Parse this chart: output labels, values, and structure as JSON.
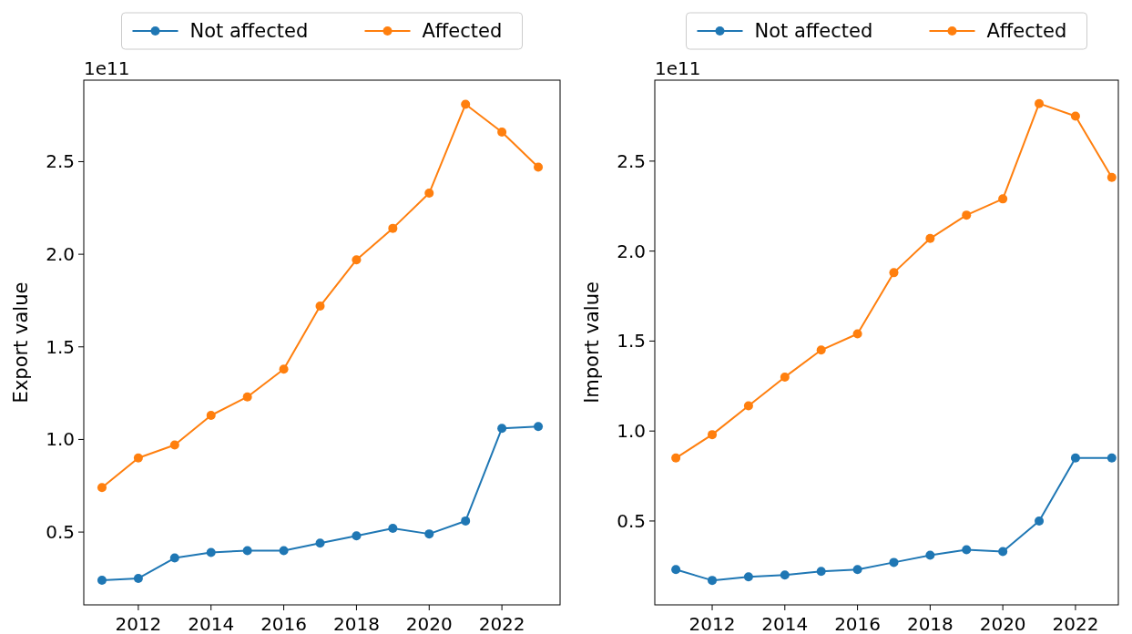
{
  "chart_data": [
    {
      "type": "line",
      "ylabel": "Export value",
      "annotations": [
        "1e11"
      ],
      "x": [
        2011,
        2012,
        2013,
        2014,
        2015,
        2016,
        2017,
        2018,
        2019,
        2020,
        2021,
        2022,
        2023
      ],
      "series": [
        {
          "name": "Not affected",
          "color": "#1f77b4",
          "values": [
            0.24,
            0.25,
            0.36,
            0.39,
            0.4,
            0.4,
            0.44,
            0.48,
            0.52,
            0.49,
            0.56,
            1.06,
            1.07
          ]
        },
        {
          "name": "Affected",
          "color": "#ff7f0e",
          "values": [
            0.74,
            0.9,
            0.97,
            1.13,
            1.23,
            1.38,
            1.72,
            1.97,
            2.14,
            2.33,
            2.81,
            2.66,
            2.47
          ]
        }
      ],
      "xlim": [
        2010.5,
        2023.6
      ],
      "xticks": [
        2012,
        2014,
        2016,
        2018,
        2020,
        2022
      ],
      "ylim": [
        0.107,
        2.94
      ],
      "yticks": [
        {
          "value": 0.5,
          "label": "0.5"
        },
        {
          "value": 1,
          "label": "1.0"
        },
        {
          "value": 1.5,
          "label": "1.5"
        },
        {
          "value": 2,
          "label": "2.0"
        },
        {
          "value": 2.5,
          "label": "2.5"
        }
      ],
      "grid": false,
      "legend": "top",
      "marker": "circle",
      "line_style": "solid"
    },
    {
      "type": "line",
      "ylabel": "Import value",
      "annotations": [
        "1e11"
      ],
      "x": [
        2011,
        2012,
        2013,
        2014,
        2015,
        2016,
        2017,
        2018,
        2019,
        2020,
        2021,
        2022,
        2023
      ],
      "series": [
        {
          "name": "Not affected",
          "color": "#1f77b4",
          "values": [
            0.23,
            0.17,
            0.19,
            0.2,
            0.22,
            0.23,
            0.27,
            0.31,
            0.34,
            0.33,
            0.5,
            0.85,
            0.85
          ]
        },
        {
          "name": "Affected",
          "color": "#ff7f0e",
          "values": [
            0.85,
            0.98,
            1.14,
            1.3,
            1.45,
            1.54,
            1.88,
            2.07,
            2.2,
            2.29,
            2.82,
            2.75,
            2.41
          ]
        }
      ],
      "xlim": [
        2010.42,
        2023.18
      ],
      "xticks": [
        2012,
        2014,
        2016,
        2018,
        2020,
        2022
      ],
      "ylim": [
        0.034,
        2.95
      ],
      "yticks": [
        {
          "value": 0.5,
          "label": "0.5"
        },
        {
          "value": 1,
          "label": "1.0"
        },
        {
          "value": 1.5,
          "label": "1.5"
        },
        {
          "value": 2,
          "label": "2.0"
        },
        {
          "value": 2.5,
          "label": "2.5"
        }
      ],
      "grid": false,
      "legend": "top",
      "marker": "circle",
      "line_style": "solid"
    }
  ]
}
